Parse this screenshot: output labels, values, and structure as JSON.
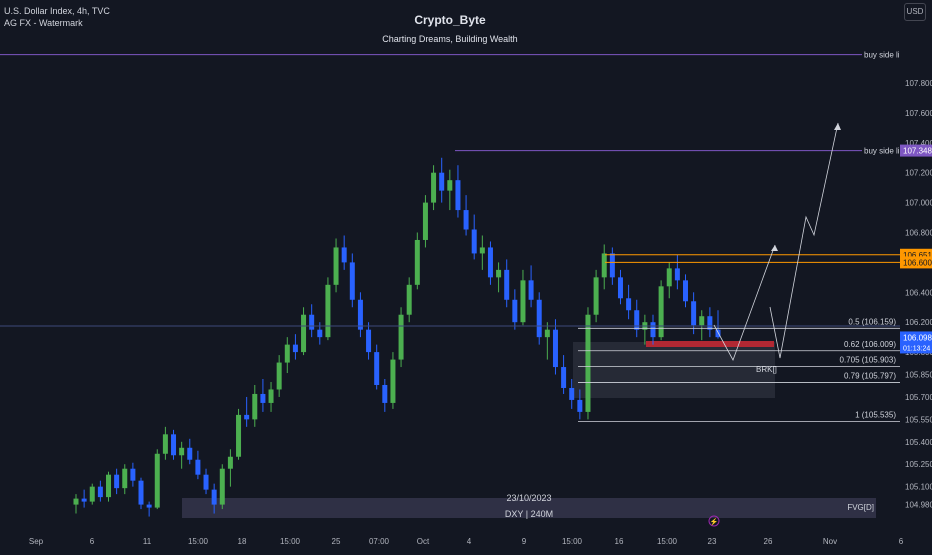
{
  "header": {
    "symbol_line": "U.S. Dollar Index, 4h, TVC",
    "indicator_line": "AG FX - Watermark",
    "currency_button": "USD"
  },
  "watermark": {
    "title": "Crypto_Byte",
    "subtitle": "Charting Dreams, Building Wealth"
  },
  "colors": {
    "background": "#131722",
    "bull": "#4caf50",
    "bear": "#2962ff",
    "buy_side_line": "#7e57c2",
    "orange_line": "#ff9800",
    "fib_line": "#d1d4dc",
    "red_box": "#b22833",
    "price_tag": "#2962ff"
  },
  "chart_data": {
    "type": "candlestick",
    "title": "U.S. Dollar Index, 4h, TVC",
    "y_axis": {
      "ticks": [
        104.98,
        105.1,
        105.25,
        105.4,
        105.55,
        105.7,
        105.85,
        106.2,
        106.4,
        106.6,
        106.8,
        107.0,
        107.2,
        107.4,
        107.6,
        107.8
      ],
      "range": [
        104.95,
        108.05
      ],
      "extra_label": "105.800"
    },
    "x_axis": {
      "labels": [
        "Sep",
        "6",
        "11",
        "15:00",
        "18",
        "15:00",
        "25",
        "07:00",
        "Oct",
        "4",
        "9",
        "15:00",
        "16",
        "15:00",
        "23",
        "26",
        "Nov",
        "6"
      ]
    },
    "price_labels": [
      {
        "text": "107.348",
        "value": 107.348,
        "color": "#7e57c2"
      },
      {
        "text": "106.651",
        "value": 106.651,
        "color": "#ff9800"
      },
      {
        "text": "106.600",
        "value": 106.6,
        "color": "#ff9800"
      },
      {
        "text": "106.098",
        "value": 106.098,
        "color": "#2962ff",
        "countdown": "01:13:24"
      }
    ],
    "buy_side_liquidity": [
      {
        "label": "buy side liq",
        "value": 107.99
      },
      {
        "label": "buy side liq",
        "value": 107.348
      }
    ],
    "fib_levels": [
      {
        "ratio": "0.5",
        "label": "0.5 (106.159)",
        "value": 106.159
      },
      {
        "ratio": "0.62",
        "label": "0.62 (106.009)",
        "value": 106.009
      },
      {
        "ratio": "0.705",
        "label": "0.705 (105.903)",
        "value": 105.903
      },
      {
        "ratio": "0.79",
        "label": "0.79 (105.797)",
        "value": 105.797
      },
      {
        "ratio": "1",
        "label": "1 (105.535)",
        "value": 105.535
      }
    ],
    "annotations": {
      "brk_label": "BRK[]",
      "fvg_label": "FVG[D]",
      "zone_date": "23/10/2023",
      "zone_name": "DXY | 240M"
    },
    "projection_path": [
      [
        0,
        105.9
      ],
      [
        1,
        106.6
      ],
      [
        2,
        106.15
      ],
      [
        3,
        105.93
      ],
      [
        4,
        106.72
      ],
      [
        5,
        107.34
      ]
    ],
    "candles": [
      [
        104.98,
        105.05,
        104.92,
        105.02
      ],
      [
        105.02,
        105.08,
        104.96,
        105.0
      ],
      [
        105.0,
        105.12,
        104.98,
        105.1
      ],
      [
        105.1,
        105.14,
        105.0,
        105.03
      ],
      [
        105.03,
        105.2,
        105.0,
        105.18
      ],
      [
        105.18,
        105.22,
        105.05,
        105.09
      ],
      [
        105.09,
        105.25,
        105.05,
        105.22
      ],
      [
        105.22,
        105.26,
        105.1,
        105.14
      ],
      [
        105.14,
        105.16,
        104.95,
        104.98
      ],
      [
        104.98,
        105.0,
        104.9,
        104.96
      ],
      [
        104.96,
        105.35,
        104.95,
        105.32
      ],
      [
        105.32,
        105.5,
        105.28,
        105.45
      ],
      [
        105.45,
        105.48,
        105.28,
        105.31
      ],
      [
        105.31,
        105.4,
        105.22,
        105.36
      ],
      [
        105.36,
        105.42,
        105.25,
        105.28
      ],
      [
        105.28,
        105.34,
        105.15,
        105.18
      ],
      [
        105.18,
        105.22,
        105.05,
        105.08
      ],
      [
        105.08,
        105.12,
        104.92,
        104.98
      ],
      [
        104.98,
        105.25,
        104.95,
        105.22
      ],
      [
        105.22,
        105.35,
        105.1,
        105.3
      ],
      [
        105.3,
        105.62,
        105.28,
        105.58
      ],
      [
        105.58,
        105.7,
        105.5,
        105.55
      ],
      [
        105.55,
        105.78,
        105.5,
        105.72
      ],
      [
        105.72,
        105.82,
        105.6,
        105.66
      ],
      [
        105.66,
        105.8,
        105.6,
        105.75
      ],
      [
        105.75,
        105.98,
        105.7,
        105.93
      ],
      [
        105.93,
        106.1,
        105.86,
        106.05
      ],
      [
        106.05,
        106.12,
        105.95,
        106.0
      ],
      [
        106.0,
        106.3,
        105.98,
        106.25
      ],
      [
        106.25,
        106.32,
        106.1,
        106.15
      ],
      [
        106.15,
        106.2,
        106.05,
        106.1
      ],
      [
        106.1,
        106.5,
        106.08,
        106.45
      ],
      [
        106.45,
        106.76,
        106.4,
        106.7
      ],
      [
        106.7,
        106.78,
        106.55,
        106.6
      ],
      [
        106.6,
        106.66,
        106.3,
        106.35
      ],
      [
        106.35,
        106.4,
        106.1,
        106.15
      ],
      [
        106.15,
        106.2,
        105.95,
        106.0
      ],
      [
        106.0,
        106.05,
        105.75,
        105.78
      ],
      [
        105.78,
        105.82,
        105.6,
        105.66
      ],
      [
        105.66,
        106.0,
        105.62,
        105.95
      ],
      [
        105.95,
        106.3,
        105.9,
        106.25
      ],
      [
        106.25,
        106.5,
        106.2,
        106.45
      ],
      [
        106.45,
        106.8,
        106.42,
        106.75
      ],
      [
        106.75,
        107.05,
        106.7,
        107.0
      ],
      [
        107.0,
        107.25,
        106.95,
        107.2
      ],
      [
        107.2,
        107.3,
        107.0,
        107.08
      ],
      [
        107.08,
        107.22,
        106.95,
        107.15
      ],
      [
        107.15,
        107.25,
        106.9,
        106.95
      ],
      [
        106.95,
        107.05,
        106.78,
        106.82
      ],
      [
        106.82,
        106.92,
        106.62,
        106.66
      ],
      [
        106.66,
        106.78,
        106.55,
        106.7
      ],
      [
        106.7,
        106.74,
        106.45,
        106.5
      ],
      [
        106.5,
        106.6,
        106.4,
        106.55
      ],
      [
        106.55,
        106.62,
        106.3,
        106.35
      ],
      [
        106.35,
        106.42,
        106.15,
        106.2
      ],
      [
        106.2,
        106.55,
        106.18,
        106.48
      ],
      [
        106.48,
        106.58,
        106.3,
        106.35
      ],
      [
        106.35,
        106.4,
        106.05,
        106.1
      ],
      [
        106.1,
        106.2,
        105.95,
        106.15
      ],
      [
        106.15,
        106.22,
        105.85,
        105.9
      ],
      [
        105.9,
        105.98,
        105.72,
        105.76
      ],
      [
        105.76,
        105.82,
        105.62,
        105.68
      ],
      [
        105.68,
        105.75,
        105.55,
        105.6
      ],
      [
        105.6,
        106.3,
        105.55,
        106.25
      ],
      [
        106.25,
        106.55,
        106.2,
        106.5
      ],
      [
        106.5,
        106.72,
        106.42,
        106.66
      ],
      [
        106.66,
        106.7,
        106.45,
        106.5
      ],
      [
        106.5,
        106.55,
        106.32,
        106.36
      ],
      [
        106.36,
        106.45,
        106.22,
        106.28
      ],
      [
        106.28,
        106.35,
        106.1,
        106.15
      ],
      [
        106.15,
        106.25,
        106.05,
        106.2
      ],
      [
        106.2,
        106.25,
        106.05,
        106.1
      ],
      [
        106.1,
        106.48,
        106.08,
        106.44
      ],
      [
        106.44,
        106.6,
        106.36,
        106.56
      ],
      [
        106.56,
        106.65,
        106.42,
        106.48
      ],
      [
        106.48,
        106.52,
        106.3,
        106.34
      ],
      [
        106.34,
        106.4,
        106.12,
        106.18
      ],
      [
        106.18,
        106.28,
        106.08,
        106.24
      ],
      [
        106.24,
        106.3,
        106.1,
        106.15
      ],
      [
        106.15,
        106.28,
        106.09,
        106.1
      ]
    ]
  }
}
